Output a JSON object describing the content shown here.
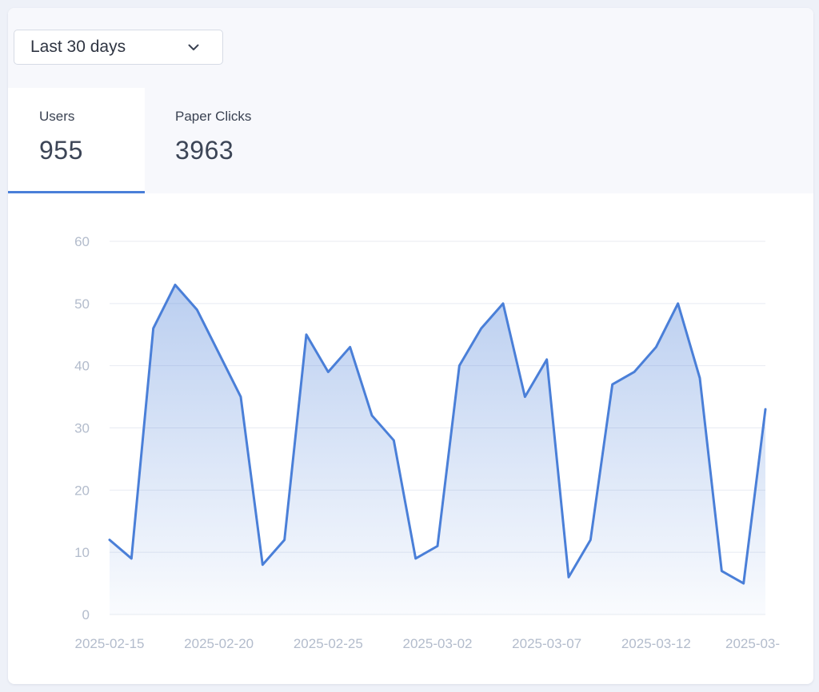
{
  "filter": {
    "selected": "Last 30 days",
    "chevron_icon": "chevron-down-icon"
  },
  "tabs": [
    {
      "label": "Users",
      "value": "955",
      "active": true
    },
    {
      "label": "Paper Clicks",
      "value": "3963",
      "active": false
    }
  ],
  "colors": {
    "line": "#4a7fd8",
    "accent": "#4a7fd8",
    "grid": "#e8ebf2",
    "tick": "#b3bccc"
  },
  "chart_data": {
    "type": "area",
    "title": "",
    "xlabel": "",
    "ylabel": "",
    "ylim": [
      0,
      60
    ],
    "yticks": [
      0,
      10,
      20,
      30,
      40,
      50,
      60
    ],
    "xtick_labels": [
      "2025-02-15",
      "2025-02-20",
      "2025-02-25",
      "2025-03-02",
      "2025-03-07",
      "2025-03-12",
      "2025-03-"
    ],
    "grid": true,
    "legend": "none",
    "x": [
      "2025-02-15",
      "2025-02-16",
      "2025-02-17",
      "2025-02-18",
      "2025-02-19",
      "2025-02-20",
      "2025-02-21",
      "2025-02-22",
      "2025-02-23",
      "2025-02-24",
      "2025-02-25",
      "2025-02-26",
      "2025-02-27",
      "2025-02-28",
      "2025-03-01",
      "2025-03-02",
      "2025-03-03",
      "2025-03-04",
      "2025-03-05",
      "2025-03-06",
      "2025-03-07",
      "2025-03-08",
      "2025-03-09",
      "2025-03-10",
      "2025-03-11",
      "2025-03-12",
      "2025-03-13",
      "2025-03-14",
      "2025-03-15",
      "2025-03-16",
      "2025-03-17"
    ],
    "series": [
      {
        "values": [
          12,
          9,
          46,
          53,
          49,
          42,
          35,
          8,
          12,
          45,
          39,
          43,
          32,
          28,
          9,
          11,
          40,
          46,
          50,
          35,
          41,
          6,
          12,
          37,
          39,
          43,
          50,
          38,
          7,
          5,
          33
        ]
      }
    ]
  }
}
